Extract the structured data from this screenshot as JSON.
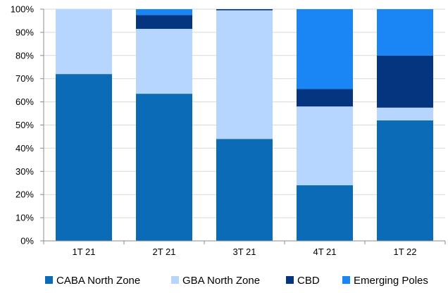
{
  "chart_data": {
    "type": "bar",
    "stacked": true,
    "percent": true,
    "categories": [
      "1T 21",
      "2T 21",
      "3T 21",
      "4T 21",
      "1T 22"
    ],
    "series": [
      {
        "name": "CABA North Zone",
        "color": "#0b6bb6",
        "values": [
          72,
          63.5,
          44,
          24,
          52
        ]
      },
      {
        "name": "GBA North Zone",
        "color": "#b7d6ff",
        "values": [
          28,
          28,
          55.5,
          34,
          5.5
        ]
      },
      {
        "name": "CBD",
        "color": "#04357e",
        "values": [
          0,
          6,
          0.5,
          7.5,
          22.5
        ]
      },
      {
        "name": "Emerging Poles",
        "color": "#1a86f5",
        "values": [
          0,
          2.5,
          0,
          34.5,
          20
        ]
      }
    ],
    "yticks": [
      "0%",
      "10%",
      "20%",
      "30%",
      "40%",
      "50%",
      "60%",
      "70%",
      "80%",
      "90%",
      "100%"
    ],
    "ylim": [
      0,
      100
    ],
    "grid": true,
    "legend": "bottom",
    "title": "",
    "xlabel": "",
    "ylabel": ""
  }
}
